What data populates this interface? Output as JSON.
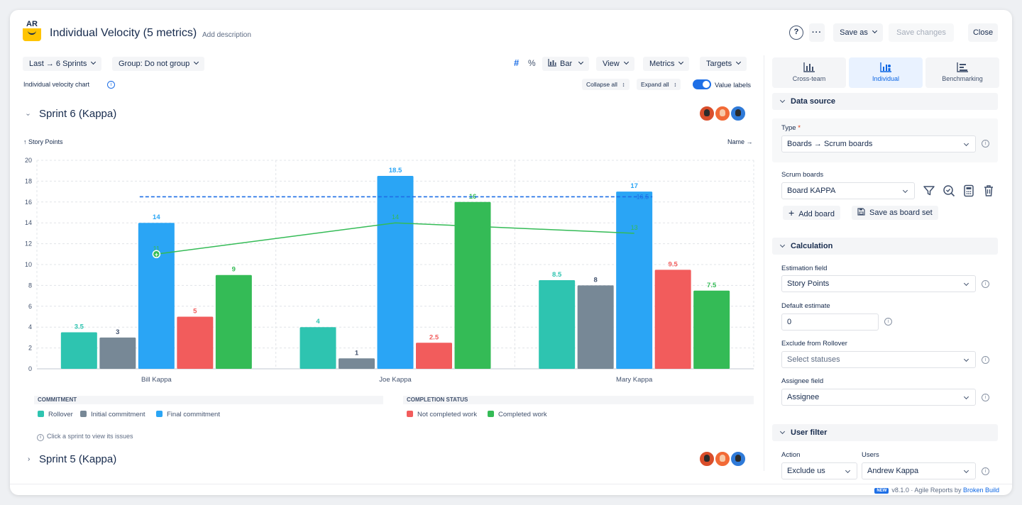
{
  "header": {
    "logo_text": "AR",
    "title": "Individual Velocity (5 metrics)",
    "add_description": "Add description",
    "help": "?",
    "more": "···",
    "save_as": "Save as",
    "save_changes": "Save changes",
    "close": "Close"
  },
  "toolbar": {
    "range": "Last → 6 Sprints",
    "group": "Group: Do not group",
    "hash": "#",
    "percent": "%",
    "chart_type": "Bar",
    "view": "View",
    "metrics": "Metrics",
    "targets": "Targets",
    "chart_label": "Individual velocity chart",
    "collapse_all": "Collapse all",
    "expand_all": "Expand all",
    "value_labels": "Value labels",
    "value_labels_on": true
  },
  "sprints": [
    {
      "title": "Sprint 6 (Kappa)",
      "expanded": true
    },
    {
      "title": "Sprint 5 (Kappa)",
      "expanded": false
    }
  ],
  "chart_data": {
    "type": "bar",
    "ylabel": "↑ Story Points",
    "xlabel": "Name →",
    "ylim": [
      0,
      20
    ],
    "yticks": [
      0,
      2,
      4,
      6,
      8,
      10,
      12,
      14,
      16,
      18,
      20
    ],
    "categories": [
      "Bill Kappa",
      "Joe Kappa",
      "Mary Kappa"
    ],
    "series": [
      {
        "name": "Rollover",
        "color": "#2ec4b0",
        "values": [
          3.5,
          4,
          8.5
        ]
      },
      {
        "name": "Initial commitment",
        "color": "#778896",
        "values": [
          3,
          1,
          8
        ]
      },
      {
        "name": "Final commitment",
        "color": "#2aa5f5",
        "values": [
          14,
          18.5,
          17
        ]
      },
      {
        "name": "Not completed work",
        "color": "#f25c5c",
        "values": [
          5,
          2.5,
          9.5
        ]
      },
      {
        "name": "Completed work",
        "color": "#34bb56",
        "values": [
          9,
          16,
          7.5
        ]
      }
    ],
    "average_line": {
      "value": 16.5,
      "label": "16.5",
      "color": "#1e6fe6"
    },
    "trend_line": {
      "values": [
        11,
        14,
        13
      ],
      "labels": [
        "11",
        "14",
        "13"
      ],
      "color": "#34bb56"
    },
    "grid": true
  },
  "legend": {
    "commitment_heading": "COMMITMENT",
    "completion_heading": "COMPLETION STATUS",
    "rollover": "Rollover",
    "initial": "Initial commitment",
    "final": "Final commitment",
    "not_completed": "Not completed work",
    "completed": "Completed work",
    "hint": "Click a sprint to view its issues"
  },
  "panel": {
    "tabs": [
      {
        "label": "Cross-team",
        "active": false
      },
      {
        "label": "Individual",
        "active": true
      },
      {
        "label": "Benchmarking",
        "active": false
      }
    ],
    "data_source": {
      "heading": "Data source",
      "type_label": "Type",
      "type_value": "Boards → Scrum boards",
      "boards_label": "Scrum boards",
      "board_value": "Board KAPPA",
      "add_board": "Add board",
      "save_board_set": "Save as board set"
    },
    "calculation": {
      "heading": "Calculation",
      "estimation_label": "Estimation field",
      "estimation_value": "Story Points",
      "default_label": "Default estimate",
      "default_value": "0",
      "exclude_label": "Exclude from Rollover",
      "exclude_placeholder": "Select statuses",
      "assignee_label": "Assignee field",
      "assignee_value": "Assignee"
    },
    "user_filter": {
      "heading": "User filter",
      "action_label": "Action",
      "users_label": "Users",
      "action_value": "Exclude us",
      "users_value": "Andrew Kappa"
    }
  },
  "footer": {
    "badge": "NEW",
    "version": "v8.1.0",
    "sep": "· Agile Reports by",
    "brand": "Broken Build"
  }
}
